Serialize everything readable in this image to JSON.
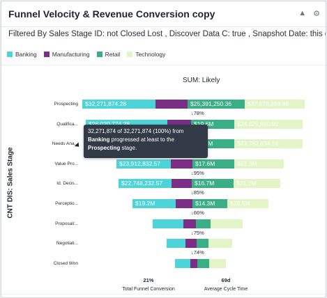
{
  "title": "Funnel Velocity & Revenue Conversion copy",
  "filter_text": "Filtered By Sales Stage ID: not Closed Lost , Discover Data C: true , Snapshot Date: this day",
  "legend": [
    {
      "label": "Banking",
      "color": "#4dd4d8"
    },
    {
      "label": "Manufacturing",
      "color": "#7a2e86"
    },
    {
      "label": "Retail",
      "color": "#3aae84"
    },
    {
      "label": "Technology",
      "color": "#e3f4c6"
    }
  ],
  "measure_label": "SUM: Likely",
  "y_axis_title": "CNT DIS: Sales Stage",
  "colors": {
    "Banking": "#4dd4d8",
    "Manufacturing": "#7a2e86",
    "Retail": "#3aae84",
    "Technology": "#e3f4c6"
  },
  "chart_data": {
    "type": "bar",
    "orientation": "horizontal-funnel",
    "title": "SUM: Likely",
    "ylabel": "CNT DIS: Sales Stage",
    "categories": [
      "Prospecting",
      "Qualifica...",
      "Needs Ana...",
      "Value Pro...",
      "Id. Decis...",
      "Perceptio...",
      "Proposal/...",
      "Negotiati...",
      "Closed Won"
    ],
    "series": [
      {
        "name": "Banking",
        "values": [
          32271874.28,
          26020774.28,
          null,
          23912832.57,
          22748232.57,
          19200000,
          null,
          null,
          null
        ],
        "labels": [
          "$32,271,874.28",
          "$26,020,774.28",
          "",
          "$23,912,832.57",
          "$22,748,232.57",
          "$19.2M",
          "",
          "",
          ""
        ]
      },
      {
        "name": "Manufacturing",
        "values": [
          null,
          null,
          null,
          null,
          null,
          null,
          null,
          null,
          null
        ],
        "labels": [
          "",
          "",
          "",
          "",
          "",
          "",
          "",
          "",
          ""
        ]
      },
      {
        "name": "Retail",
        "values": [
          25391250.36,
          19600000,
          18800000,
          17600000,
          16700000,
          14300000,
          null,
          null,
          null
        ],
        "labels": [
          "$25,391,250.36",
          "$19.6M",
          "$18.8M",
          "$17.6M",
          "$16.7M",
          "$14.3M",
          "",
          "",
          ""
        ]
      },
      {
        "name": "Technology",
        "values": [
          37078589.88,
          24825880.92,
          23762634.56,
          22300000,
          21700000,
          18500000,
          null,
          null,
          null
        ],
        "labels": [
          "$37,078,589.88",
          "$24,825,880.92",
          "$23,762,634.56",
          "$22.3M",
          "$21.7M",
          "$18.5M",
          "",
          "",
          ""
        ]
      }
    ],
    "conversion_between_stages": [
      "78%",
      "",
      "",
      "95%",
      "85%",
      "66%",
      "75%",
      "74%"
    ],
    "totals": {
      "total_funnel_conversion": "21%",
      "average_cycle_time": "69d"
    }
  },
  "footer": [
    {
      "value": "21%",
      "label": "Total Funnel Conversion"
    },
    {
      "value": "69d",
      "label": "Average Cycle Time"
    }
  ],
  "tooltip": {
    "line1": "32,271,874 of 32,271,874 (100%) from",
    "segment": "Banking",
    "line2": " progressed at least to the",
    "stage": "Prospecting",
    "line3": " stage."
  }
}
